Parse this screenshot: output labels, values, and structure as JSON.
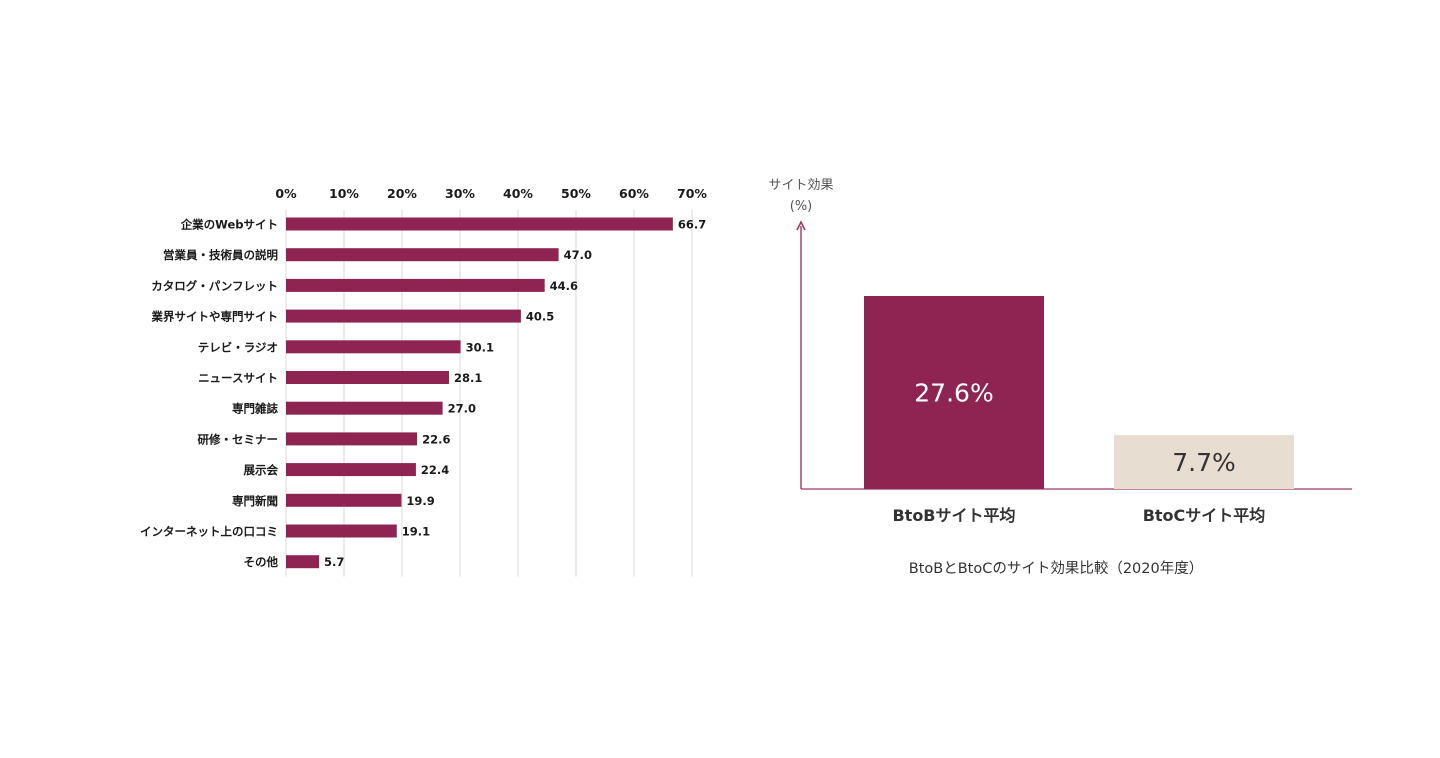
{
  "chart_data": [
    {
      "type": "bar",
      "orientation": "horizontal",
      "categories": [
        "企業のWebサイト",
        "営業員・技術員の説明",
        "カタログ・パンフレット",
        "業界サイトや専門サイト",
        "テレビ・ラジオ",
        "ニュースサイト",
        "専門雑誌",
        "研修・セミナー",
        "展示会",
        "専門新聞",
        "インターネット上の口コミ",
        "その他"
      ],
      "values": [
        66.7,
        47.0,
        44.6,
        40.5,
        30.1,
        28.1,
        27.0,
        22.6,
        22.4,
        19.9,
        19.1,
        5.7
      ],
      "value_labels": [
        "66.7",
        "47.0",
        "44.6",
        "40.5",
        "30.1",
        "28.1",
        "27.0",
        "22.6",
        "22.4",
        "19.9",
        "19.1",
        "5.7"
      ],
      "xlim": [
        0,
        70
      ],
      "ticks": [
        0,
        10,
        20,
        30,
        40,
        50,
        60,
        70
      ],
      "tick_labels": [
        "0%",
        "10%",
        "20%",
        "30%",
        "40%",
        "50%",
        "60%",
        "70%"
      ],
      "grid": true,
      "axis_position": "top",
      "bar_color": "#8d2451"
    },
    {
      "type": "bar",
      "orientation": "vertical",
      "categories": [
        "BtoBサイト平均",
        "BtoCサイト平均"
      ],
      "values": [
        27.6,
        7.7
      ],
      "value_labels": [
        "27.6%",
        "7.7%"
      ],
      "bar_colors": [
        "#8d2451",
        "#e7ddd0"
      ],
      "label_colors": [
        "#ffffff",
        "#333333"
      ],
      "ylabel": "サイト効果",
      "ylabel_unit": "(%)",
      "caption": "BtoBとBtoCのサイト効果比較（2020年度）",
      "axis_color": "#9c3a64"
    }
  ]
}
